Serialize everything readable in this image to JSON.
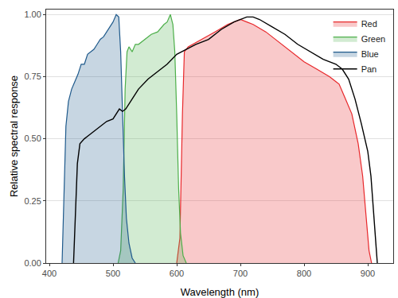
{
  "chart_data": {
    "type": "area",
    "x_label": "Wavelength (nm)",
    "y_label": "Relative spectral response",
    "xlim": [
      395,
      940
    ],
    "xticks": [
      400,
      500,
      600,
      700,
      800,
      900
    ],
    "ylim": [
      0,
      1.02
    ],
    "yticks": [
      {
        "value": 0,
        "label": "0.00"
      },
      {
        "value": 0.25,
        "label": "0.25"
      },
      {
        "value": 0.5,
        "label": "0.50"
      },
      {
        "value": 0.75,
        "label": "0.75"
      },
      {
        "value": 1,
        "label": "1.00"
      }
    ],
    "grid": "y",
    "legend": "top right",
    "series": [
      {
        "name": "Red",
        "color": "#e8282b",
        "type": "area",
        "x": [
          600,
          605,
          609,
          612,
          618,
          625,
          640,
          660,
          680,
          690,
          700,
          710,
          720,
          740,
          760,
          780,
          800,
          820,
          840,
          850,
          855,
          865,
          875,
          885,
          892,
          897,
          902,
          906
        ],
        "values": [
          0,
          0.1,
          0.6,
          0.85,
          0.87,
          0.88,
          0.9,
          0.93,
          0.96,
          0.97,
          0.98,
          0.97,
          0.96,
          0.93,
          0.89,
          0.85,
          0.81,
          0.78,
          0.75,
          0.73,
          0.72,
          0.66,
          0.6,
          0.48,
          0.35,
          0.2,
          0.05,
          0
        ]
      },
      {
        "name": "Green",
        "color": "#4daf4a",
        "type": "area",
        "x": [
          508,
          512,
          516,
          519,
          522,
          525,
          530,
          535,
          540,
          550,
          560,
          570,
          580,
          585,
          590,
          594,
          597,
          600,
          603,
          606,
          610,
          615
        ],
        "values": [
          0,
          0.05,
          0.3,
          0.7,
          0.85,
          0.87,
          0.85,
          0.88,
          0.88,
          0.9,
          0.92,
          0.93,
          0.96,
          0.97,
          1.0,
          0.96,
          0.85,
          0.6,
          0.3,
          0.12,
          0.03,
          0
        ]
      },
      {
        "name": "Blue",
        "color": "#1f5a8c",
        "type": "area",
        "x": [
          420,
          423,
          426,
          430,
          435,
          440,
          445,
          450,
          455,
          460,
          465,
          470,
          475,
          480,
          485,
          490,
          495,
          500,
          505,
          509,
          512,
          515,
          518,
          521,
          525,
          530,
          535
        ],
        "values": [
          0,
          0.3,
          0.55,
          0.65,
          0.7,
          0.73,
          0.76,
          0.8,
          0.8,
          0.84,
          0.85,
          0.86,
          0.88,
          0.9,
          0.91,
          0.93,
          0.95,
          0.97,
          1.0,
          0.99,
          0.85,
          0.6,
          0.35,
          0.18,
          0.08,
          0.02,
          0
        ]
      },
      {
        "name": "Pan",
        "color": "#000000",
        "type": "line",
        "x": [
          438,
          441,
          444,
          448,
          455,
          460,
          470,
          480,
          490,
          500,
          505,
          510,
          515,
          520,
          530,
          540,
          555,
          570,
          585,
          600,
          615,
          630,
          650,
          670,
          690,
          700,
          710,
          720,
          730,
          750,
          770,
          790,
          810,
          830,
          850,
          860,
          870,
          880,
          890,
          900,
          905,
          910,
          915
        ],
        "values": [
          0,
          0.2,
          0.4,
          0.48,
          0.5,
          0.51,
          0.53,
          0.55,
          0.57,
          0.58,
          0.6,
          0.62,
          0.61,
          0.62,
          0.66,
          0.7,
          0.74,
          0.77,
          0.8,
          0.84,
          0.86,
          0.88,
          0.9,
          0.94,
          0.97,
          0.98,
          0.99,
          0.99,
          0.98,
          0.95,
          0.92,
          0.88,
          0.85,
          0.82,
          0.8,
          0.78,
          0.74,
          0.66,
          0.56,
          0.45,
          0.35,
          0.18,
          0
        ]
      }
    ]
  }
}
